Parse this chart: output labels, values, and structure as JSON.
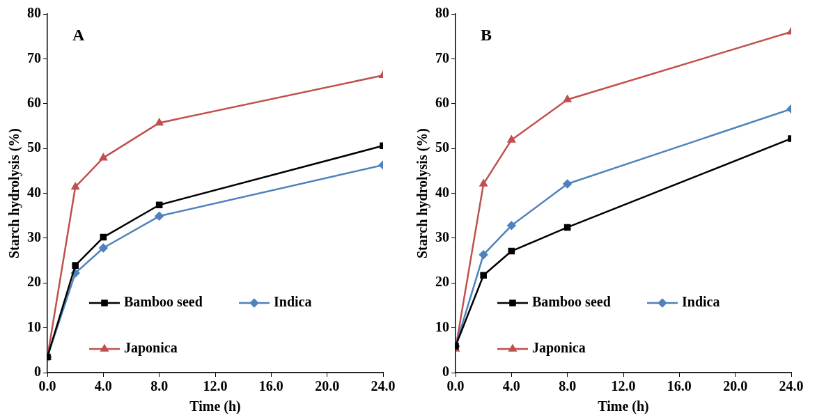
{
  "chart_data": [
    {
      "type": "line",
      "annotations": [
        "A"
      ],
      "xlabel": "Time (h)",
      "ylabel": "Starch hydrolysis (%)",
      "xlim": [
        0,
        24
      ],
      "ylim": [
        0,
        80
      ],
      "xticks": [
        {
          "value": 0,
          "label": "0.0"
        },
        {
          "value": 4,
          "label": "4.0"
        },
        {
          "value": 8,
          "label": "8.0"
        },
        {
          "value": 12,
          "label": "12.0"
        },
        {
          "value": 16,
          "label": "16.0"
        },
        {
          "value": 20,
          "label": "20.0"
        },
        {
          "value": 24,
          "label": "24.0"
        }
      ],
      "yticks": [
        0,
        10,
        20,
        30,
        40,
        50,
        60,
        70,
        80
      ],
      "grid": false,
      "legend": "bottom",
      "line_style": "solid",
      "x": [
        0,
        2,
        4,
        8,
        24
      ],
      "series": [
        {
          "name": "Bamboo seed",
          "color": "#000000",
          "marker": "square",
          "values": [
            3.5,
            23.9,
            30.2,
            37.4,
            50.6
          ]
        },
        {
          "name": "Indica",
          "color": "#4f81bd",
          "marker": "diamond",
          "values": [
            3.5,
            22.2,
            27.8,
            34.9,
            46.3
          ]
        },
        {
          "name": "Japonica",
          "color": "#c0504d",
          "marker": "triangle",
          "values": [
            3.4,
            41.4,
            47.9,
            55.7,
            66.3
          ]
        }
      ]
    },
    {
      "type": "line",
      "annotations": [
        "B"
      ],
      "xlabel": "Time (h)",
      "ylabel": "Starch hydrolysis (%)",
      "xlim": [
        0,
        24
      ],
      "ylim": [
        0,
        80
      ],
      "xticks": [
        {
          "value": 0,
          "label": "0.0"
        },
        {
          "value": 4,
          "label": "4.0"
        },
        {
          "value": 8,
          "label": "8.0"
        },
        {
          "value": 12,
          "label": "12.0"
        },
        {
          "value": 16,
          "label": "16.0"
        },
        {
          "value": 20,
          "label": "20.0"
        },
        {
          "value": 24,
          "label": "24.0"
        }
      ],
      "yticks": [
        0,
        10,
        20,
        30,
        40,
        50,
        60,
        70,
        80
      ],
      "grid": false,
      "legend": "bottom",
      "line_style": "solid",
      "x": [
        0,
        2,
        4,
        8,
        24
      ],
      "series": [
        {
          "name": "Bamboo seed",
          "color": "#000000",
          "marker": "square",
          "values": [
            5.9,
            21.7,
            27.1,
            32.4,
            52.2
          ]
        },
        {
          "name": "Indica",
          "color": "#4f81bd",
          "marker": "diamond",
          "values": [
            5.9,
            26.3,
            32.8,
            42.1,
            58.8
          ]
        },
        {
          "name": "Japonica",
          "color": "#c0504d",
          "marker": "triangle",
          "values": [
            5.3,
            42.1,
            51.9,
            60.9,
            76.0
          ]
        }
      ]
    }
  ]
}
